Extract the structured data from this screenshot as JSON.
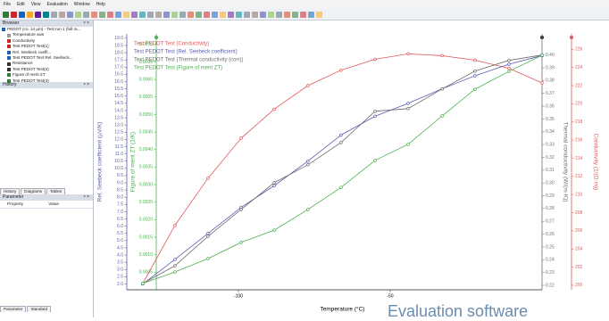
{
  "menu": [
    "File",
    "Edit",
    "View",
    "Evaluation",
    "Window",
    "Help"
  ],
  "browser": {
    "title": "Browser",
    "items": [
      "PEDOT (co. 14 µm) - Test run 1 (full ra...",
      "Temperature axis",
      "Conductivity",
      "Test PEDOT Test(1)",
      "Rel. Seebeck coeffi...",
      "Test PEDOT Test Rel. Seebeck...",
      "Resistance",
      "Test PEDOT Test(2)",
      "Figure of merit ZT",
      "Test PEDOT Test(3)"
    ]
  },
  "history": {
    "title": "History"
  },
  "tabs": [
    "History",
    "Diagrams",
    "Tables"
  ],
  "parameter": {
    "title": "Parameter",
    "columns": [
      "Property",
      "Value"
    ]
  },
  "bottom_tabs": [
    "Parameter",
    "Standard"
  ],
  "caption": "Evaluation software",
  "chart_data": {
    "type": "line",
    "xlabel": "Temperature (°C)",
    "x": [
      -131.5,
      -120.9,
      -110,
      -99.1,
      -88.2,
      -77.1,
      -66.2,
      -55,
      -44.1,
      -32.9,
      -22.1,
      -10.9,
      0
    ],
    "xlim": [
      -134.4,
      0
    ],
    "xticks": [
      -100,
      -50
    ],
    "ylabel": "Rel. Seebeck coefficient (µV/K)",
    "ylim": [
      1.6,
      19.3
    ],
    "yticks": [
      {
        "value": 2,
        "label": "2.0"
      },
      2.5,
      {
        "value": 3,
        "label": "3.0"
      },
      3.5,
      {
        "value": 4,
        "label": "4.0"
      },
      4.5,
      {
        "value": 5,
        "label": "5.0"
      },
      5.5,
      {
        "value": 6,
        "label": "6.0"
      },
      6.5,
      {
        "value": 7,
        "label": "7.0"
      },
      7.5,
      {
        "value": 8,
        "label": "8.0"
      },
      8.5,
      {
        "value": 9,
        "label": "9.0"
      },
      9.5,
      {
        "value": 10,
        "label": "10.0"
      },
      10.5,
      {
        "value": 11,
        "label": "11.0"
      },
      11.5,
      {
        "value": 12,
        "label": "12.0"
      },
      12.5,
      {
        "value": 13,
        "label": "13.0"
      },
      13.5,
      {
        "value": 14,
        "label": "14.0"
      },
      14.5,
      {
        "value": 15,
        "label": "15.0"
      },
      15.5,
      {
        "value": 16,
        "label": "16.0"
      },
      16.5,
      {
        "value": 17,
        "label": "17.0"
      },
      17.5,
      {
        "value": 18,
        "label": "18.0"
      },
      18.5,
      {
        "value": 19,
        "label": "19.0"
      }
    ],
    "y2label": "Figure of merit ZT (1/K)",
    "y2lim": [
      0,
      0.0073
    ],
    "y2ticks": [
      0.0005,
      {
        "value": 0.001,
        "label": "0.0010"
      },
      0.0015,
      {
        "value": 0.002,
        "label": "0.0020"
      },
      0.0025,
      {
        "value": 0.003,
        "label": "0.0030"
      },
      0.0035,
      {
        "value": 0.004,
        "label": "0.0040"
      },
      0.0045,
      {
        "value": 0.005,
        "label": "0.0050"
      },
      0.0055,
      {
        "value": 0.006,
        "label": "0.0060"
      },
      0.0065,
      {
        "value": 0.007,
        "label": "0.0070"
      }
    ],
    "y3label": "Thermal conductivity (W/(m·K))",
    "y3lim": [
      0.2165,
      0.4165
    ],
    "y3ticks": [
      0.22,
      0.23,
      0.24,
      0.25,
      0.26,
      0.27,
      0.28,
      0.29,
      {
        "value": 0.3,
        "label": "0.30"
      },
      0.31,
      0.32,
      0.33,
      0.34,
      0.35,
      0.36,
      0.37,
      0.38,
      0.39,
      {
        "value": 0.4,
        "label": "0.40"
      }
    ],
    "y4label": "Conductivity (1/(Ω·m))",
    "y4lim": [
      199.5,
      227.7
    ],
    "y4ticks": [
      200,
      202,
      204,
      206,
      208,
      210,
      212,
      214,
      216,
      218,
      220,
      222,
      224,
      226
    ],
    "markers": true,
    "series": [
      {
        "name": "Test PEDOT Test (Conductivity)",
        "color": "#e05a5a",
        "axis": "y4",
        "values": [
          200.2,
          206.6,
          211.8,
          216.2,
          219.4,
          222.0,
          223.7,
          224.9,
          225.5,
          225.3,
          224.8,
          223.9,
          222.3
        ]
      },
      {
        "name": "Test PEDOT Test (Rel. Seebeck coefficient)",
        "color": "#5b5fb0",
        "axis": "y",
        "values": [
          2.0,
          3.7,
          5.5,
          7.3,
          8.8,
          10.5,
          12.3,
          13.6,
          14.5,
          15.5,
          16.4,
          17.2,
          17.8
        ]
      },
      {
        "name": "Test PEDOT Test (Thermal conductivity (corr))",
        "color": "#6e6e6e",
        "axis": "y3",
        "values": [
          0.2214,
          0.2353,
          0.2583,
          0.2793,
          0.3002,
          0.3142,
          0.3316,
          0.356,
          0.3581,
          0.3735,
          0.3874,
          0.3958,
          0.4
        ]
      },
      {
        "name": "Test PEDOT Test (Figure of merit ZT)",
        "color": "#4caf50",
        "axis": "y2",
        "values": [
          0.00018,
          0.00051,
          0.00089,
          0.00135,
          0.0017,
          0.00229,
          0.00292,
          0.00369,
          0.00415,
          0.00496,
          0.00572,
          0.00623,
          0.00669
        ]
      }
    ]
  }
}
